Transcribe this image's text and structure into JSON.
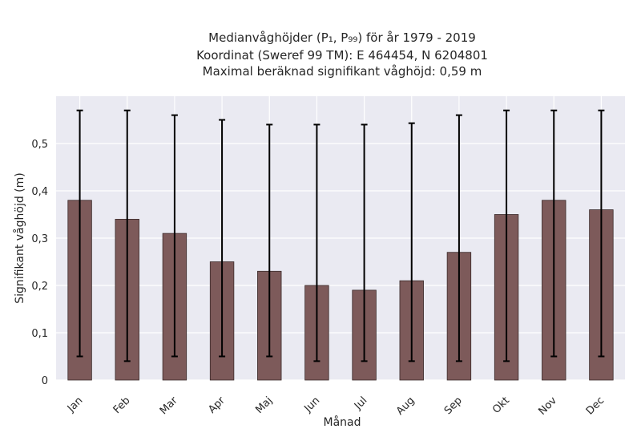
{
  "chart_data": {
    "type": "bar",
    "title_lines": [
      "Medianvåghöjder (P₁, P₉₉) för år 1979 - 2019",
      "Koordinat (Sweref 99 TM): E 464454, N 6204801",
      "Maximal beräknad signifikant våghöjd: 0,59 m"
    ],
    "xlabel": "Månad",
    "ylabel": "Signifikant våghöjd (m)",
    "categories": [
      "Jan",
      "Feb",
      "Mar",
      "Apr",
      "Maj",
      "Jun",
      "Jul",
      "Aug",
      "Sep",
      "Okt",
      "Nov",
      "Dec"
    ],
    "values": [
      0.38,
      0.34,
      0.31,
      0.25,
      0.23,
      0.2,
      0.19,
      0.21,
      0.27,
      0.35,
      0.38,
      0.36
    ],
    "error_low": [
      0.05,
      0.04,
      0.05,
      0.05,
      0.05,
      0.04,
      0.04,
      0.04,
      0.04,
      0.04,
      0.05,
      0.05
    ],
    "error_high": [
      0.57,
      0.57,
      0.56,
      0.55,
      0.54,
      0.54,
      0.54,
      0.543,
      0.56,
      0.57,
      0.57,
      0.57
    ],
    "ylim": [
      0,
      0.6
    ],
    "yticks": [
      0,
      0.1,
      0.2,
      0.3,
      0.4,
      0.5
    ],
    "ytick_labels": [
      "0",
      "0,1",
      "0,2",
      "0,3",
      "0,4",
      "0,5"
    ],
    "grid": true,
    "colors": {
      "bar": "#7d5a5a",
      "bar_edge": "#3a2a2a",
      "plot_bg": "#eaeaf2",
      "grid": "#ffffff",
      "error": "#000000"
    }
  }
}
